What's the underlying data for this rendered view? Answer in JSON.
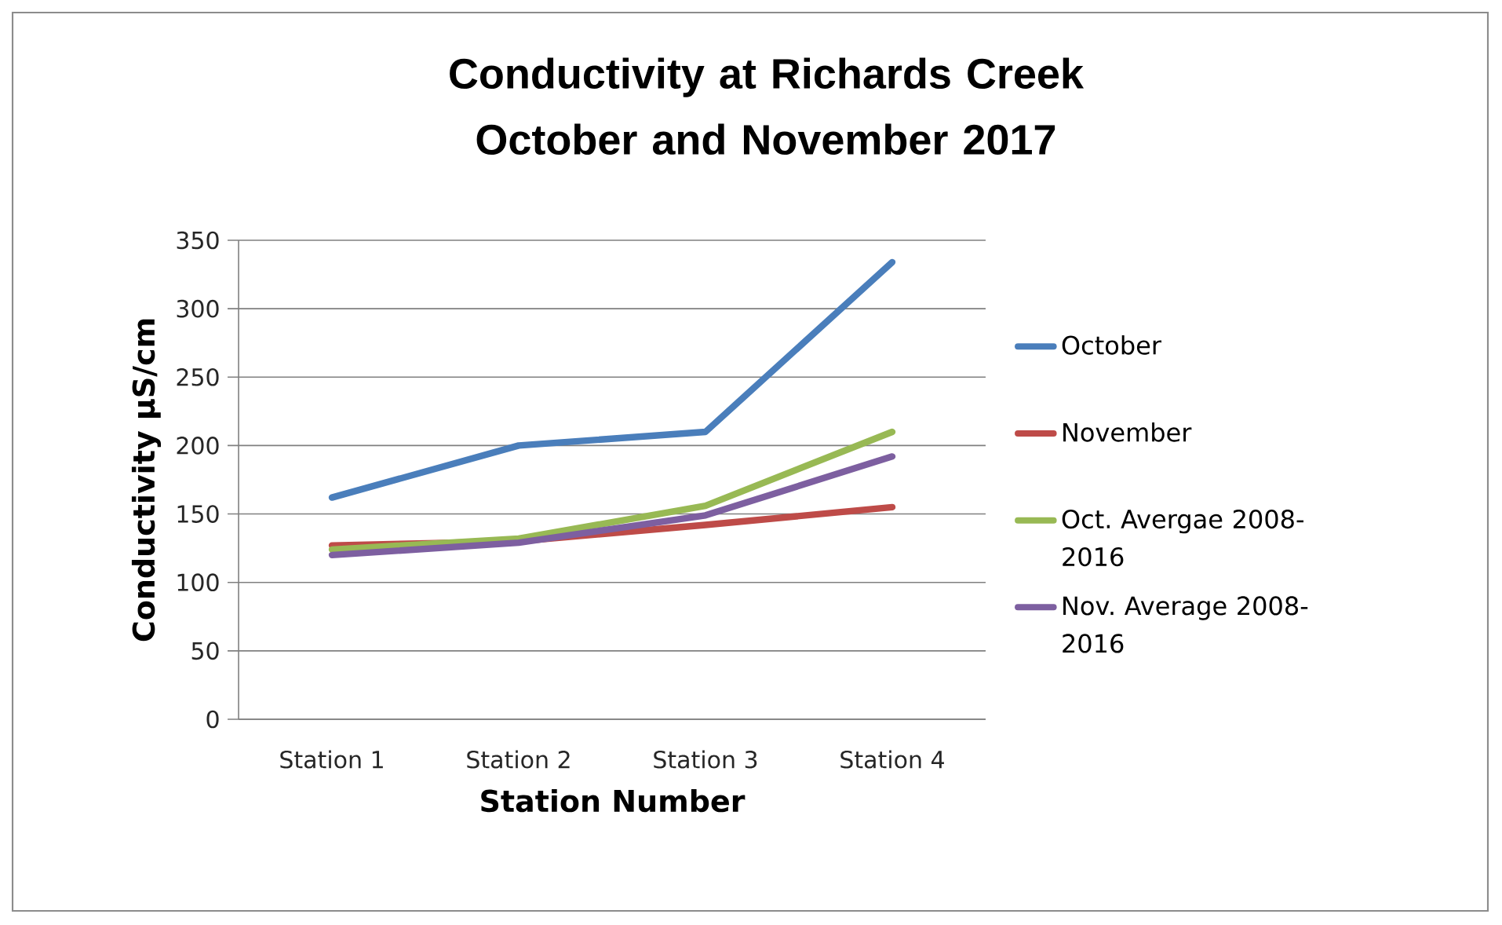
{
  "chart_data": {
    "type": "line",
    "title": "Conductivity at Richards Creek October and November 2017",
    "xlabel": "Station Number",
    "ylabel": "Conductivity µS/cm",
    "categories": [
      "Station 1",
      "Station 2",
      "Station 3",
      "Station 4"
    ],
    "series": [
      {
        "name": "October",
        "color": "#4a7ebb",
        "values": [
          162,
          200,
          210,
          334
        ]
      },
      {
        "name": "November",
        "color": "#be4b48",
        "values": [
          127,
          130,
          142,
          155
        ]
      },
      {
        "name": "Oct. Avergae 2008-2016",
        "color": "#98b954",
        "values": [
          124,
          132,
          156,
          210
        ]
      },
      {
        "name": "Nov. Average 2008-2016",
        "color": "#7d5fa0",
        "values": [
          120,
          129,
          149,
          192
        ]
      }
    ],
    "ylim": [
      0,
      350
    ],
    "yticks": [
      0,
      50,
      100,
      150,
      200,
      250,
      300,
      350
    ],
    "grid": "y",
    "legend": "right",
    "marker": "none",
    "line_style": "solid"
  }
}
